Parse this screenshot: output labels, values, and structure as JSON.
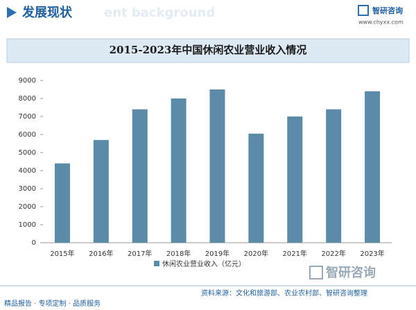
{
  "header": {
    "title": "发展现状",
    "subtitle": "ent background",
    "logo": "智研咨询",
    "url": "www.chyxx.com"
  },
  "chart_data": {
    "type": "bar",
    "title": "2015-2023年中国休闲农业营业收入情况",
    "categories": [
      "2015年",
      "2016年",
      "2017年",
      "2018年",
      "2019年",
      "2020年",
      "2021年",
      "2022年",
      "2023年"
    ],
    "series": [
      {
        "name": "休闲农业营业收入（亿元）",
        "color": "#5b8ba7",
        "values": [
          4400,
          5700,
          7400,
          8000,
          8500,
          6050,
          7000,
          7400,
          8400
        ]
      }
    ],
    "ylim": [
      0,
      9000
    ],
    "yticks": [
      0,
      1000,
      2000,
      3000,
      4000,
      5000,
      6000,
      7000,
      8000,
      9000
    ],
    "grid": false
  },
  "footer": {
    "slogan": "精品报告 · 专项定制 · 品质服务",
    "source": "资料来源：文化和旅游部、农业农村部、智研咨询整理",
    "logo": "智研咨询"
  }
}
